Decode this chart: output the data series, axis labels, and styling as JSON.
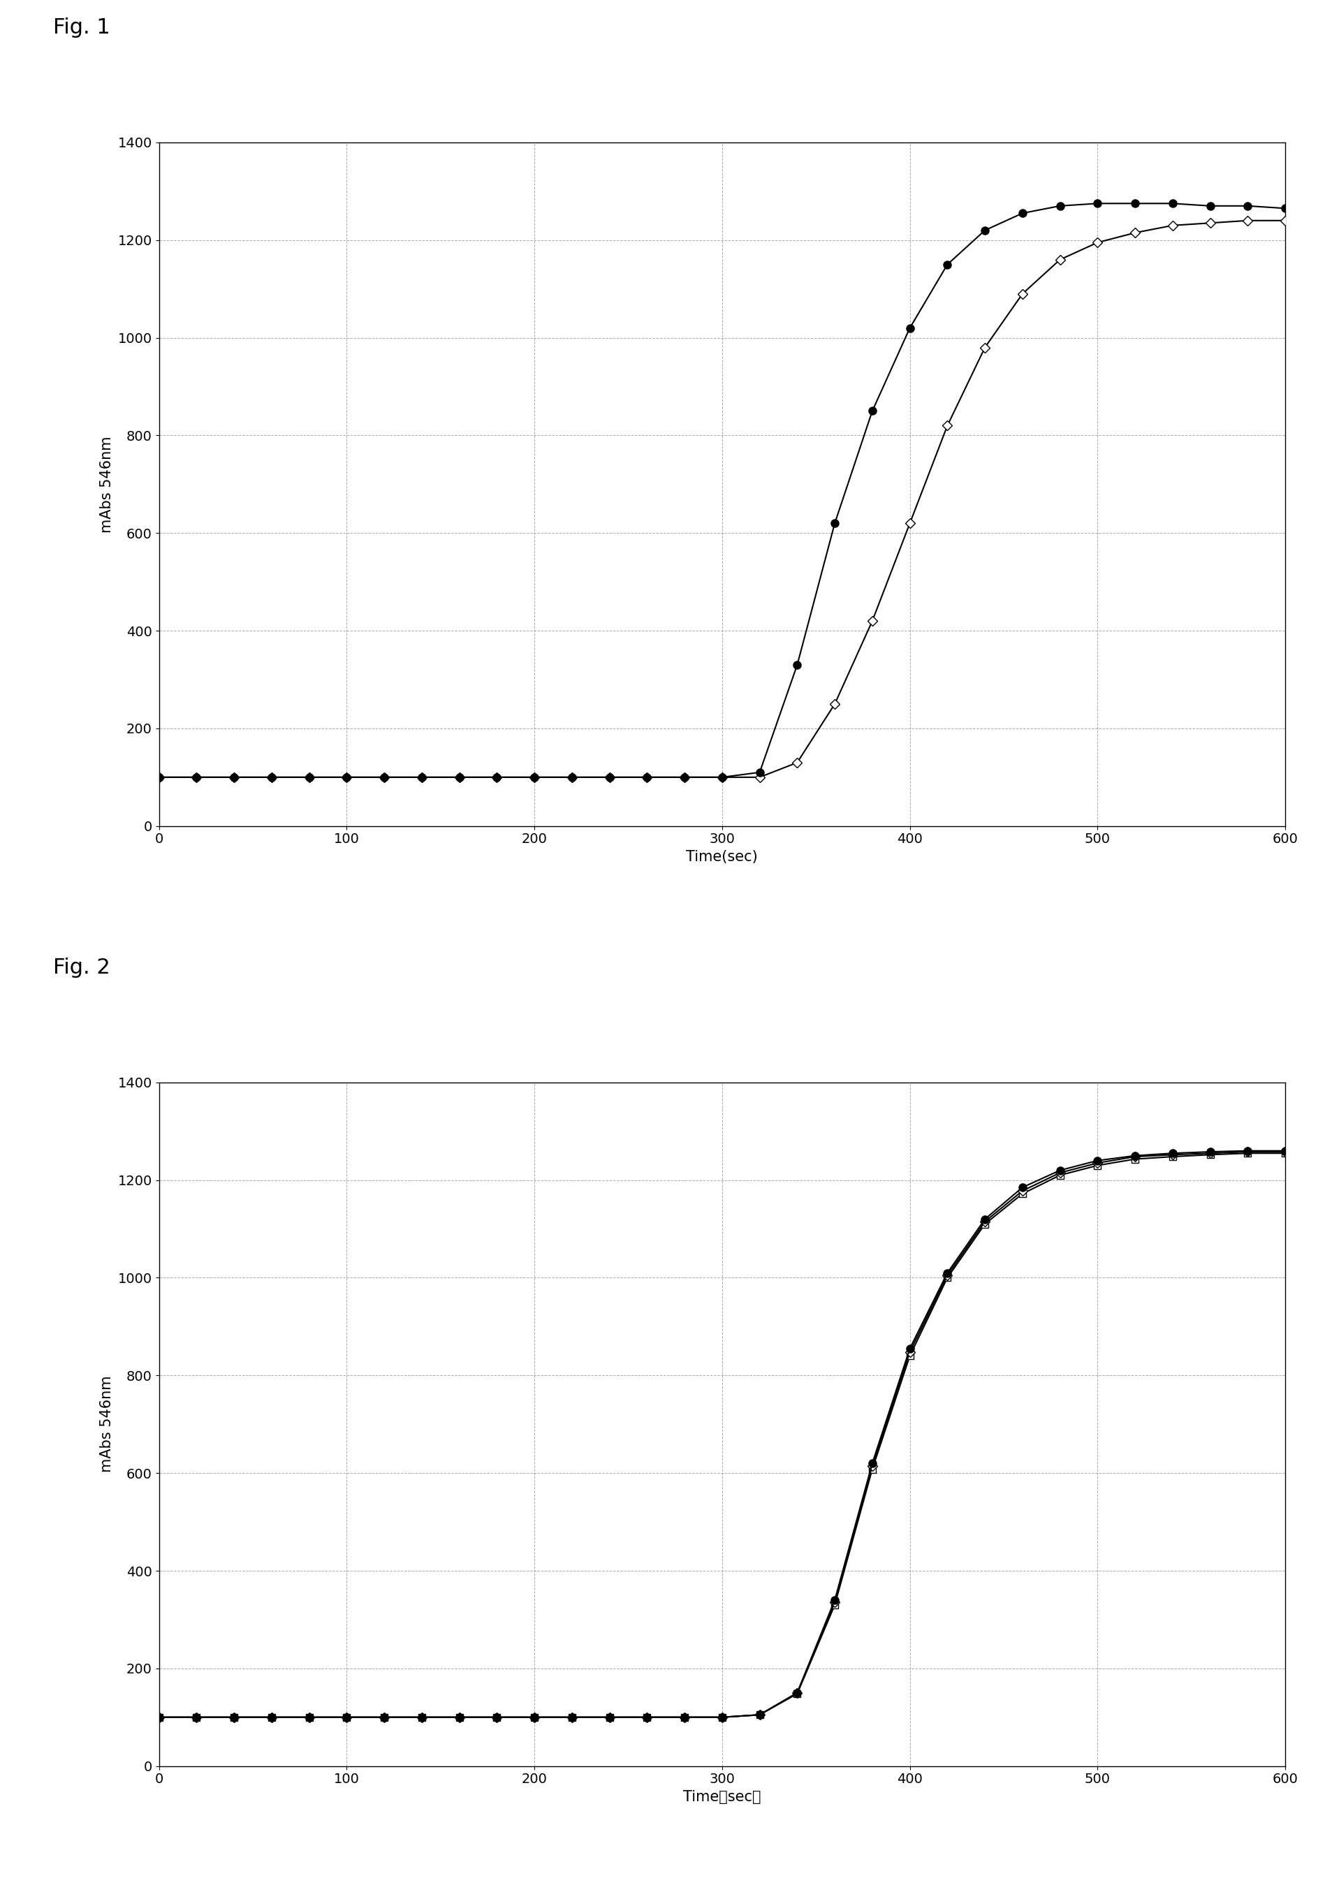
{
  "fig1_title": "Fig. 1",
  "fig2_title": "Fig. 2",
  "fig1_xlabel": "Time(sec)",
  "fig2_xlabel": "Time（sec）",
  "ylabel": "mAbs 546nm",
  "xlim": [
    0,
    600
  ],
  "ylim": [
    0,
    1400
  ],
  "yticks": [
    0,
    200,
    400,
    600,
    800,
    1000,
    1200,
    1400
  ],
  "xticks": [
    0,
    100,
    200,
    300,
    400,
    500,
    600
  ],
  "fig1_series1_x": [
    0,
    20,
    40,
    60,
    80,
    100,
    120,
    140,
    160,
    180,
    200,
    220,
    240,
    260,
    280,
    300,
    320,
    340,
    360,
    380,
    400,
    420,
    440,
    460,
    480,
    500,
    520,
    540,
    560,
    580,
    600
  ],
  "fig1_series1_y": [
    100,
    100,
    100,
    100,
    100,
    100,
    100,
    100,
    100,
    100,
    100,
    100,
    100,
    100,
    100,
    100,
    110,
    330,
    620,
    850,
    1020,
    1150,
    1220,
    1255,
    1270,
    1275,
    1275,
    1275,
    1270,
    1270,
    1265
  ],
  "fig1_series2_x": [
    0,
    20,
    40,
    60,
    80,
    100,
    120,
    140,
    160,
    180,
    200,
    220,
    240,
    260,
    280,
    300,
    320,
    340,
    360,
    380,
    400,
    420,
    440,
    460,
    480,
    500,
    520,
    540,
    560,
    580,
    600
  ],
  "fig1_series2_y": [
    100,
    100,
    100,
    100,
    100,
    100,
    100,
    100,
    100,
    100,
    100,
    100,
    100,
    100,
    100,
    100,
    100,
    130,
    250,
    420,
    620,
    820,
    980,
    1090,
    1160,
    1195,
    1215,
    1230,
    1235,
    1240,
    1240
  ],
  "fig2_series1_x": [
    0,
    20,
    40,
    60,
    80,
    100,
    120,
    140,
    160,
    180,
    200,
    220,
    240,
    260,
    280,
    300,
    320,
    340,
    360,
    380,
    400,
    420,
    440,
    460,
    480,
    500,
    520,
    540,
    560,
    580,
    600
  ],
  "fig2_series1_y": [
    100,
    100,
    100,
    100,
    100,
    100,
    100,
    100,
    100,
    100,
    100,
    100,
    100,
    100,
    100,
    100,
    105,
    150,
    340,
    620,
    855,
    1010,
    1120,
    1185,
    1220,
    1240,
    1250,
    1255,
    1258,
    1260,
    1260
  ],
  "fig2_series2_x": [
    0,
    20,
    40,
    60,
    80,
    100,
    120,
    140,
    160,
    180,
    200,
    220,
    240,
    260,
    280,
    300,
    320,
    340,
    360,
    380,
    400,
    420,
    440,
    460,
    480,
    500,
    520,
    540,
    560,
    580,
    600
  ],
  "fig2_series2_y": [
    100,
    100,
    100,
    100,
    100,
    100,
    100,
    100,
    100,
    100,
    100,
    100,
    100,
    100,
    100,
    100,
    105,
    150,
    335,
    615,
    848,
    1005,
    1115,
    1178,
    1215,
    1235,
    1248,
    1252,
    1255,
    1258,
    1258
  ],
  "fig2_series3_x": [
    0,
    20,
    40,
    60,
    80,
    100,
    120,
    140,
    160,
    180,
    200,
    220,
    240,
    260,
    280,
    300,
    320,
    340,
    360,
    380,
    400,
    420,
    440,
    460,
    480,
    500,
    520,
    540,
    560,
    580,
    600
  ],
  "fig2_series3_y": [
    100,
    100,
    100,
    100,
    100,
    100,
    100,
    100,
    100,
    100,
    100,
    100,
    100,
    100,
    100,
    100,
    105,
    148,
    330,
    608,
    840,
    1000,
    1110,
    1172,
    1210,
    1230,
    1243,
    1248,
    1252,
    1255,
    1255
  ],
  "line_color": "#000000",
  "grid_linestyle": "--",
  "grid_color": "#888888",
  "background_color": "#ffffff",
  "fig_label_fontsize": 22,
  "axis_label_fontsize": 15,
  "tick_fontsize": 14
}
